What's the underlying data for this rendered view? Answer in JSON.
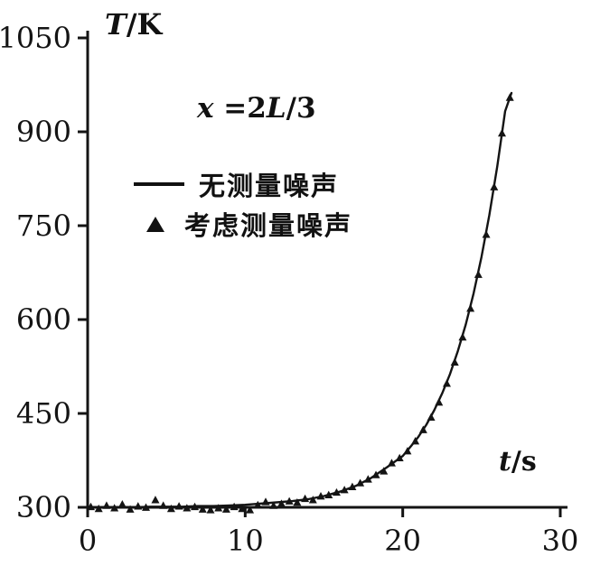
{
  "labels": {
    "y": {
      "var": "T",
      "unit": "/K"
    },
    "x": {
      "var": "t",
      "unit": "/s"
    }
  },
  "annotation": {
    "parts": [
      {
        "text": "x"
      },
      {
        "text": " =2"
      },
      {
        "text": "L"
      },
      {
        "text": "/3"
      }
    ]
  },
  "legend": {
    "items": [
      {
        "marker": "line",
        "label": "无测量噪声"
      },
      {
        "marker": "triangle",
        "label": "考虑测量噪声"
      }
    ]
  },
  "chart_data": {
    "type": "line",
    "title": "",
    "xlabel": "t/s",
    "ylabel": "T/K",
    "xlim": [
      0,
      30
    ],
    "ylim": [
      300,
      1050
    ],
    "x_ticks": [
      0,
      10,
      20,
      30
    ],
    "y_ticks": [
      300,
      450,
      600,
      750,
      900,
      1050
    ],
    "grid": false,
    "legend_position": "upper-left-inside",
    "annotation_text": "x =2L/3",
    "series": [
      {
        "name": "无测量噪声",
        "type": "line",
        "points": [
          [
            0,
            300
          ],
          [
            1,
            300
          ],
          [
            2,
            300
          ],
          [
            3,
            300
          ],
          [
            4,
            301
          ],
          [
            5,
            301
          ],
          [
            6,
            301
          ],
          [
            7,
            302
          ],
          [
            8,
            302
          ],
          [
            9,
            303
          ],
          [
            10,
            304
          ],
          [
            11,
            306
          ],
          [
            12,
            308
          ],
          [
            13,
            310
          ],
          [
            14,
            313
          ],
          [
            15,
            318
          ],
          [
            16,
            325
          ],
          [
            17,
            334
          ],
          [
            18,
            347
          ],
          [
            19,
            364
          ],
          [
            20,
            382
          ],
          [
            20.5,
            397
          ],
          [
            21,
            413
          ],
          [
            21.5,
            432
          ],
          [
            22,
            455
          ],
          [
            22.5,
            482
          ],
          [
            23,
            513
          ],
          [
            23.5,
            550
          ],
          [
            24,
            592
          ],
          [
            24.5,
            642
          ],
          [
            25,
            700
          ],
          [
            25.5,
            767
          ],
          [
            26,
            845
          ],
          [
            26.5,
            933
          ],
          [
            26.9,
            962
          ]
        ]
      },
      {
        "name": "考虑测量噪声",
        "type": "scatter",
        "marker": "triangle",
        "points": [
          [
            0.2,
            301
          ],
          [
            0.7,
            298
          ],
          [
            1.2,
            303
          ],
          [
            1.7,
            299
          ],
          [
            2.2,
            305
          ],
          [
            2.7,
            297
          ],
          [
            3.2,
            302
          ],
          [
            3.7,
            300
          ],
          [
            4.3,
            312
          ],
          [
            4.8,
            303
          ],
          [
            5.3,
            298
          ],
          [
            5.8,
            302
          ],
          [
            6.3,
            299
          ],
          [
            6.8,
            301
          ],
          [
            7.3,
            297
          ],
          [
            7.8,
            296
          ],
          [
            8.3,
            299
          ],
          [
            8.8,
            297
          ],
          [
            9.3,
            301
          ],
          [
            9.8,
            298
          ],
          [
            10.3,
            296
          ],
          [
            10.8,
            304
          ],
          [
            11.3,
            309
          ],
          [
            11.8,
            303
          ],
          [
            12.3,
            306
          ],
          [
            12.8,
            310
          ],
          [
            13.3,
            308
          ],
          [
            13.8,
            314
          ],
          [
            14.3,
            312
          ],
          [
            14.8,
            318
          ],
          [
            15.3,
            320
          ],
          [
            15.8,
            324
          ],
          [
            16.3,
            328
          ],
          [
            16.8,
            333
          ],
          [
            17.3,
            339
          ],
          [
            17.8,
            345
          ],
          [
            18.3,
            352
          ],
          [
            18.8,
            358
          ],
          [
            19.3,
            371
          ],
          [
            19.8,
            379
          ],
          [
            20.3,
            390
          ],
          [
            20.8,
            406
          ],
          [
            21.3,
            424
          ],
          [
            21.8,
            444
          ],
          [
            22.3,
            468
          ],
          [
            22.8,
            498
          ],
          [
            23.3,
            532
          ],
          [
            23.8,
            572
          ],
          [
            24.3,
            618
          ],
          [
            24.8,
            672
          ],
          [
            25.3,
            736
          ],
          [
            25.8,
            812
          ],
          [
            26.3,
            898
          ],
          [
            26.8,
            955
          ]
        ]
      }
    ]
  }
}
